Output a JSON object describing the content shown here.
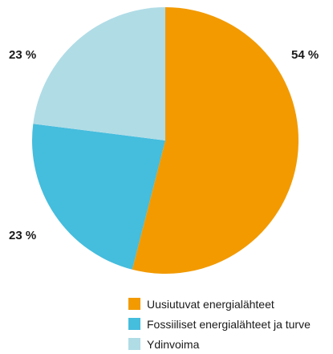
{
  "chart_data": {
    "type": "pie",
    "slices": [
      {
        "label": "Uusiutuvat energialähteet",
        "value": 54,
        "display": "54 %",
        "color": "#F29A00"
      },
      {
        "label": "Fossiiliset energialähteet ja turve",
        "value": 23,
        "display": "23 %",
        "color": "#45BDDD"
      },
      {
        "label": "Ydinvoima",
        "value": 23,
        "display": "23 %",
        "color": "#B0DCE6"
      }
    ],
    "start_angle": "12 o'clock",
    "direction": "clockwise",
    "legend_position": "bottom-right"
  }
}
